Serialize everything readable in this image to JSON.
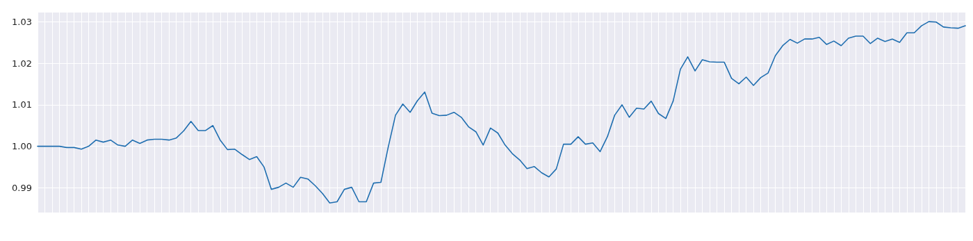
{
  "chart_data": {
    "type": "line",
    "categories": [
      null,
      null,
      null,
      null,
      null,
      null,
      null,
      null,
      null,
      null,
      null,
      null,
      null,
      null,
      null,
      null,
      null,
      null,
      null,
      null,
      null,
      null,
      null,
      null,
      null,
      null,
      null,
      null,
      null,
      null,
      null,
      null,
      null,
      null,
      null,
      null,
      null,
      null,
      null,
      null,
      null,
      null,
      null,
      null,
      null,
      null,
      null,
      null,
      null,
      null,
      null,
      null,
      null,
      null,
      null,
      null,
      null,
      null,
      null,
      null,
      null,
      null,
      null,
      null,
      null,
      null,
      null,
      null,
      null,
      null,
      null,
      null,
      null,
      null,
      null,
      null,
      null,
      null,
      null,
      null,
      null,
      null,
      null,
      null,
      null,
      null,
      null,
      null,
      null,
      null,
      null,
      null,
      null,
      null,
      null,
      null,
      null,
      null,
      null,
      null,
      null,
      null,
      null,
      null,
      null,
      null,
      null,
      null,
      null,
      null,
      null,
      null,
      null,
      null,
      null,
      null,
      null,
      null,
      null,
      null,
      null,
      null,
      null,
      null,
      null,
      null,
      null,
      null
    ],
    "series": [
      {
        "color": "#1f6eb0",
        "values": [
          1.0,
          1.0,
          1.0,
          1.0,
          0.9997,
          0.9997,
          0.9993,
          1.0,
          1.0015,
          1.001,
          1.0015,
          1.0003,
          1.0,
          1.0015,
          1.0007,
          1.0015,
          1.0017,
          1.0017,
          1.0015,
          1.002,
          1.0037,
          1.006,
          1.0038,
          1.0038,
          1.005,
          1.0015,
          0.9992,
          0.9993,
          0.998,
          0.9968,
          0.9975,
          0.995,
          0.9896,
          0.9901,
          0.9911,
          0.9901,
          0.9925,
          0.9921,
          0.9905,
          0.9886,
          0.9863,
          0.9866,
          0.9896,
          0.9901,
          0.9866,
          0.9866,
          0.9911,
          0.9913,
          0.9998,
          1.0075,
          1.0102,
          1.0082,
          1.011,
          1.0131,
          1.008,
          1.0074,
          1.0075,
          1.0082,
          1.007,
          1.0047,
          1.0035,
          1.0003,
          1.0044,
          1.0032,
          1.0003,
          0.9982,
          0.9967,
          0.9946,
          0.9951,
          0.9936,
          0.9926,
          0.9945,
          1.0005,
          1.0005,
          1.0023,
          1.0005,
          1.0008,
          0.9987,
          1.0023,
          1.0075,
          1.01,
          1.007,
          1.0092,
          1.009,
          1.0109,
          1.0079,
          1.0067,
          1.0109,
          1.0186,
          1.0216,
          1.0182,
          1.0209,
          1.0204,
          1.0203,
          1.0203,
          1.0164,
          1.0151,
          1.0167,
          1.0147,
          1.0166,
          1.0177,
          1.0219,
          1.0243,
          1.0258,
          1.0249,
          1.0259,
          1.0259,
          1.0263,
          1.0246,
          1.0254,
          1.0243,
          1.0261,
          1.0266,
          1.0266,
          1.0248,
          1.0261,
          1.0253,
          1.0259,
          1.0251,
          1.0274,
          1.0274,
          1.0291,
          1.0301,
          1.03,
          1.0288,
          1.0286,
          1.0285,
          1.0291
        ]
      }
    ],
    "ylim": [
      0.984,
      1.0323
    ],
    "yticks": [
      0.99,
      {
        "value": 1,
        "label": "1.00"
      },
      1.01,
      1.02,
      1.03
    ],
    "grid": true,
    "marker": "none",
    "line_style": "solid"
  }
}
